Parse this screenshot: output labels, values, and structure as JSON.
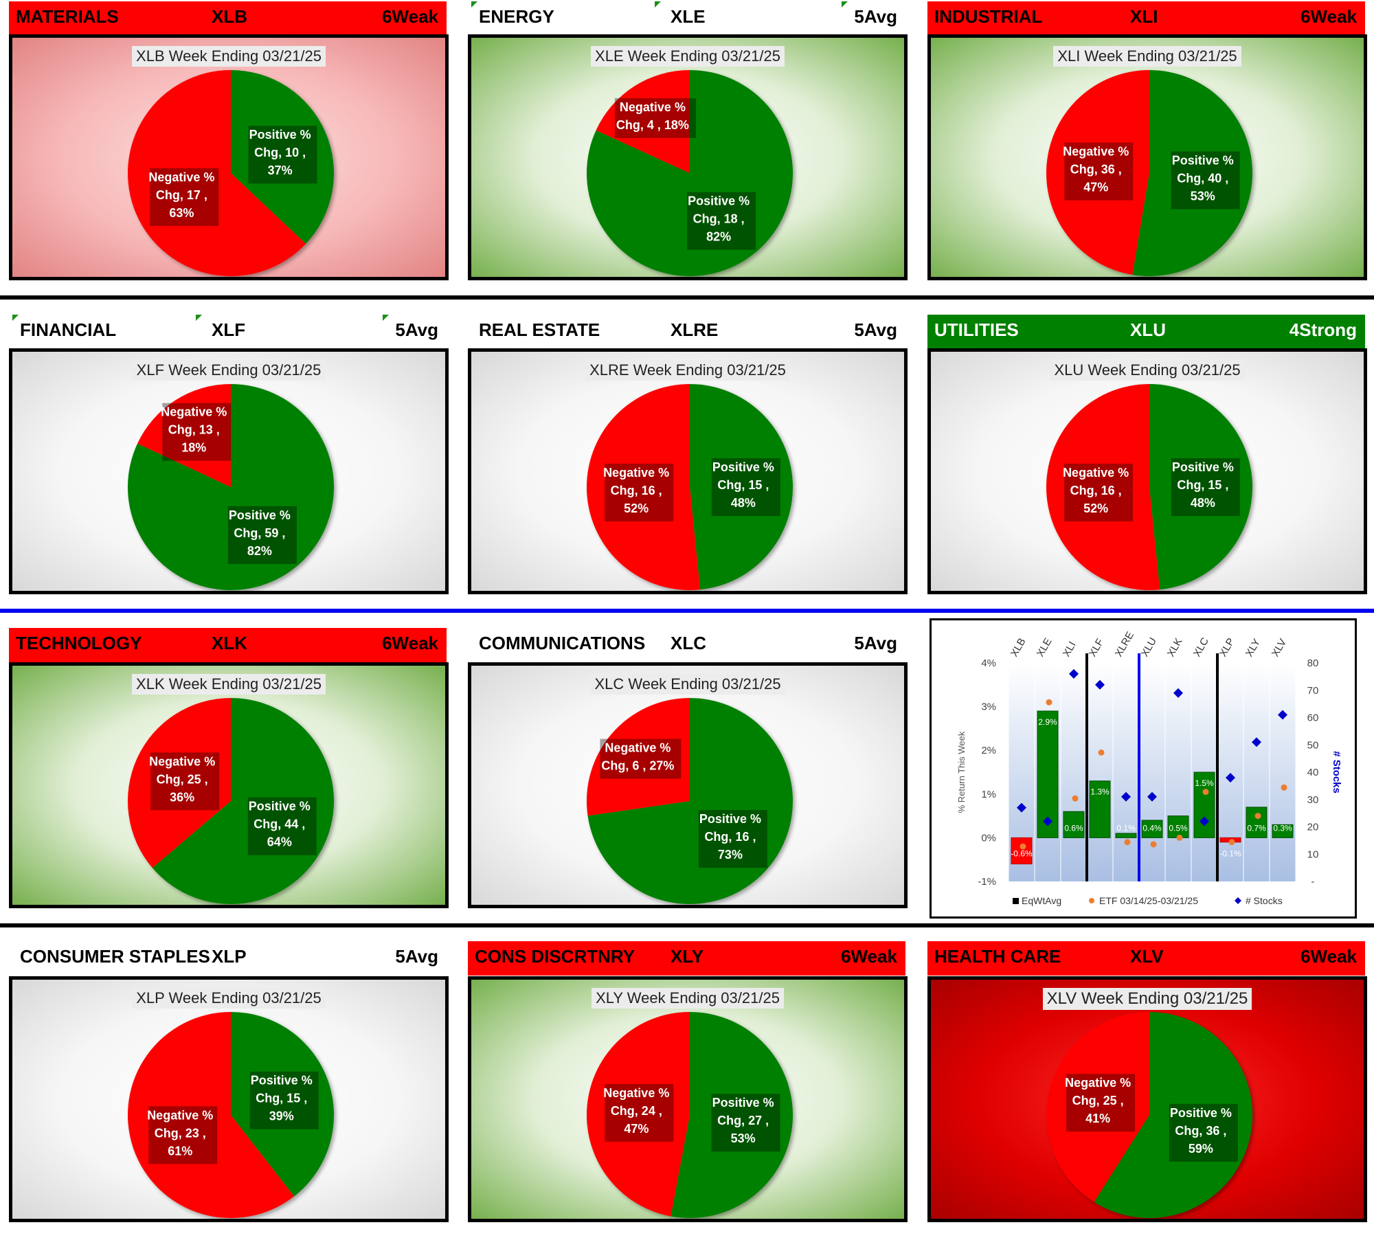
{
  "panels": [
    {
      "id": "xlb",
      "sector": "MATERIALS",
      "ticker": "XLB",
      "rating": "6Weak",
      "header_style": "red",
      "bg": "pink",
      "title": "XLB Week Ending 03/21/25",
      "slices": {
        "positive": {
          "label": "Positive %",
          "count": 10,
          "pct": "37%"
        },
        "negative": {
          "label": "Negative %",
          "count": 17,
          "pct": "63%"
        }
      }
    },
    {
      "id": "xle",
      "sector": "ENERGY",
      "ticker": "XLE",
      "rating": "5Avg",
      "header_style": "plain",
      "bg": "green",
      "title": "XLE Week Ending 03/21/25",
      "slices": {
        "positive": {
          "label": "Positive %",
          "count": 18,
          "pct": "82%"
        },
        "negative": {
          "label": "Negative %",
          "count": 4,
          "pct": "18%"
        }
      }
    },
    {
      "id": "xli",
      "sector": "INDUSTRIAL",
      "ticker": "XLI",
      "rating": "6Weak",
      "header_style": "red",
      "bg": "green",
      "title": "XLI Week Ending 03/21/25",
      "slices": {
        "positive": {
          "label": "Positive %",
          "count": 40,
          "pct": "53%"
        },
        "negative": {
          "label": "Negative %",
          "count": 36,
          "pct": "47%"
        }
      }
    },
    {
      "id": "xlf",
      "sector": "FINANCIAL",
      "ticker": "XLF",
      "rating": "5Avg",
      "header_style": "plain",
      "bg": "neutral",
      "title": "XLF Week Ending 03/21/25",
      "slices": {
        "positive": {
          "label": "Positive %",
          "count": 59,
          "pct": "82%"
        },
        "negative": {
          "label": "Negative %",
          "count": 13,
          "pct": "18%"
        }
      }
    },
    {
      "id": "xlre",
      "sector": "REAL ESTATE",
      "ticker": "XLRE",
      "rating": "5Avg",
      "header_style": "plain",
      "bg": "neutral",
      "title": "XLRE Week Ending 03/21/25",
      "slices": {
        "positive": {
          "label": "Positive %",
          "count": 15,
          "pct": "48%"
        },
        "negative": {
          "label": "Negative %",
          "count": 16,
          "pct": "52%"
        }
      }
    },
    {
      "id": "xlu",
      "sector": "UTILITIES",
      "ticker": "XLU",
      "rating": "4Strong",
      "header_style": "green",
      "bg": "neutral",
      "title": "XLU Week Ending 03/21/25",
      "slices": {
        "positive": {
          "label": "Positive %",
          "count": 15,
          "pct": "48%"
        },
        "negative": {
          "label": "Negative %",
          "count": 16,
          "pct": "52%"
        }
      }
    },
    {
      "id": "xlk",
      "sector": "TECHNOLOGY",
      "ticker": "XLK",
      "rating": "6Weak",
      "header_style": "red",
      "bg": "green",
      "title": "XLK Week Ending 03/21/25",
      "slices": {
        "positive": {
          "label": "Positive %",
          "count": 44,
          "pct": "64%"
        },
        "negative": {
          "label": "Negative %",
          "count": 25,
          "pct": "36%"
        }
      }
    },
    {
      "id": "xlc",
      "sector": "COMMUNICATIONS",
      "ticker": "XLC",
      "rating": "5Avg",
      "header_style": "plain",
      "bg": "neutral",
      "title": "XLC Week Ending 03/21/25",
      "slices": {
        "positive": {
          "label": "Positive %",
          "count": 16,
          "pct": "73%"
        },
        "negative": {
          "label": "Negative %",
          "count": 6,
          "pct": "27%"
        }
      }
    },
    {
      "id": "xlp",
      "sector": "CONSUMER STAPLES",
      "ticker": "XLP",
      "rating": "5Avg",
      "header_style": "plain",
      "bg": "neutral",
      "title": "XLP Week Ending 03/21/25",
      "slices": {
        "positive": {
          "label": "Positive %",
          "count": 15,
          "pct": "39%"
        },
        "negative": {
          "label": "Negative %",
          "count": 23,
          "pct": "61%"
        }
      }
    },
    {
      "id": "xly",
      "sector": "CONS DISCRTNRY",
      "ticker": "XLY",
      "rating": "6Weak",
      "header_style": "red",
      "bg": "green",
      "title": "XLY Week Ending 03/21/25",
      "slices": {
        "positive": {
          "label": "Positive %",
          "count": 27,
          "pct": "53%"
        },
        "negative": {
          "label": "Negative %",
          "count": 24,
          "pct": "47%"
        }
      }
    },
    {
      "id": "xlv",
      "sector": "HEALTH CARE",
      "ticker": "XLV",
      "rating": "6Weak",
      "header_style": "red",
      "bg": "darkred",
      "title": "XLV Week Ending 03/21/25",
      "slices": {
        "positive": {
          "label": "Positive %",
          "count": 36,
          "pct": "59%"
        },
        "negative": {
          "label": "Negative %",
          "count": 25,
          "pct": "41%"
        }
      }
    }
  ],
  "colors": {
    "positive": "#008000",
    "negative": "#ff0000",
    "header_red": "#ff0000",
    "header_green": "#008000",
    "separator_blue": "#0000ee",
    "eqwt_bar": "#008000",
    "etf_dot": "#ed7d31",
    "stocks_marker": "#0000cc"
  },
  "chart_data": {
    "type": "bar",
    "title": "",
    "categories": [
      "XLB",
      "XLE",
      "XLI",
      "XLF",
      "XLRE",
      "XLU",
      "XLK",
      "XLC",
      "XLP",
      "XLY",
      "XLV"
    ],
    "series": [
      {
        "name": "EqWtAvg",
        "kind": "bar",
        "axis": "left",
        "values": [
          -0.6,
          2.9,
          0.6,
          1.3,
          0.1,
          0.4,
          0.5,
          1.5,
          -0.1,
          0.7,
          0.3
        ],
        "labels": [
          "-0.6%",
          "2.9%",
          "0.6%",
          "1.3%",
          "0.1%",
          "0.4%",
          "0.5%",
          "1.5%",
          "-0.1%",
          "0.7%",
          "0.3%"
        ]
      },
      {
        "name": "ETF 03/14/25-03/21/25",
        "kind": "scatter",
        "axis": "left",
        "values": [
          -0.2,
          3.1,
          0.9,
          1.95,
          -0.1,
          -0.15,
          0.0,
          1.05,
          -0.1,
          0.5,
          1.15
        ]
      },
      {
        "name": "# Stocks",
        "kind": "scatter",
        "axis": "right",
        "values": [
          27,
          22,
          76,
          72,
          31,
          31,
          69,
          22,
          38,
          51,
          61
        ]
      }
    ],
    "ylabel": "% Return This Week",
    "y2label": "# Stocks",
    "ylim": [
      -1,
      4
    ],
    "y2lim": [
      0,
      80
    ],
    "yticks": [
      "4%",
      "3%",
      "2%",
      "1%",
      "0%",
      "-1%"
    ],
    "y2ticks": [
      "80",
      "70",
      "60",
      "50",
      "40",
      "30",
      "20",
      "10",
      "-"
    ],
    "legend": [
      "EqWtAvg",
      "ETF 03/14/25-03/21/25",
      "# Stocks"
    ],
    "legend_position": "bottom",
    "group_dividers": {
      "black_after": [
        "XLI",
        "XLC"
      ],
      "blue_after": [
        "XLRE"
      ]
    }
  }
}
